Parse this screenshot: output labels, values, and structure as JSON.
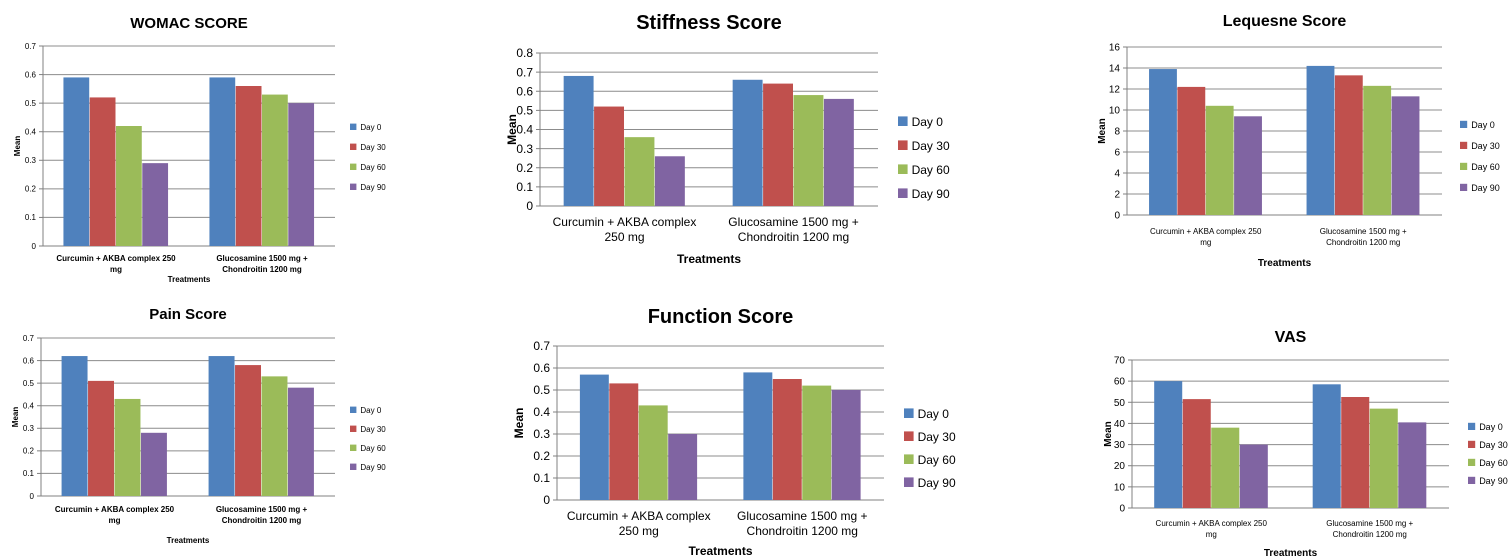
{
  "legend_colors": [
    "#4F81BD",
    "#C0504D",
    "#9BBB59",
    "#8064A2"
  ],
  "chart_data": [
    {
      "type": "bar",
      "title": "WOMAC SCORE",
      "xlabel": "Treatments",
      "ylabel": "Mean",
      "ylim": [
        0,
        0.7
      ],
      "yticks": [
        "0",
        "0.1",
        "0.2",
        "0.3",
        "0.4",
        "0.5",
        "0.6",
        "0.7"
      ],
      "categories": [
        [
          "Curcumin + AKBA complex 250",
          "mg"
        ],
        [
          "Glucosamine 1500 mg +",
          "Chondroitin 1200 mg"
        ]
      ],
      "series": [
        {
          "name": "Day 0",
          "values": [
            0.59,
            0.59
          ]
        },
        {
          "name": "Day 30",
          "values": [
            0.52,
            0.56
          ]
        },
        {
          "name": "Day 60",
          "values": [
            0.42,
            0.53
          ]
        },
        {
          "name": "Day 90",
          "values": [
            0.29,
            0.5
          ]
        }
      ],
      "legend": "right",
      "grid": true
    },
    {
      "type": "bar",
      "title": "Stiffness Score",
      "xlabel": "Treatments",
      "ylabel": "Mean",
      "ylim": [
        0,
        0.8
      ],
      "yticks": [
        "0",
        "0.1",
        "0.2",
        "0.3",
        "0.4",
        "0.5",
        "0.6",
        "0.7",
        "0.8"
      ],
      "categories": [
        [
          "Curcumin + AKBA complex",
          "250 mg"
        ],
        [
          "Glucosamine 1500 mg +",
          "Chondroitin 1200 mg"
        ]
      ],
      "series": [
        {
          "name": "Day 0",
          "values": [
            0.68,
            0.66
          ]
        },
        {
          "name": "Day 30",
          "values": [
            0.52,
            0.64
          ]
        },
        {
          "name": "Day 60",
          "values": [
            0.36,
            0.58
          ]
        },
        {
          "name": "Day 90",
          "values": [
            0.26,
            0.56
          ]
        }
      ],
      "legend": "right",
      "grid": true
    },
    {
      "type": "bar",
      "title": "Lequesne Score",
      "xlabel": "Treatments",
      "ylabel": "Mean",
      "ylim": [
        0,
        16
      ],
      "yticks": [
        "0",
        "2",
        "4",
        "6",
        "8",
        "10",
        "12",
        "14",
        "16"
      ],
      "categories": [
        [
          "Curcumin + AKBA complex 250",
          "mg"
        ],
        [
          "Glucosamine 1500 mg +",
          "Chondroitin 1200 mg"
        ]
      ],
      "series": [
        {
          "name": "Day 0",
          "values": [
            13.9,
            14.2
          ]
        },
        {
          "name": "Day 30",
          "values": [
            12.2,
            13.3
          ]
        },
        {
          "name": "Day 60",
          "values": [
            10.4,
            12.3
          ]
        },
        {
          "name": "Day 90",
          "values": [
            9.4,
            11.3
          ]
        }
      ],
      "legend": "right",
      "grid": true
    },
    {
      "type": "bar",
      "title": "Pain Score",
      "xlabel": "Treatments",
      "ylabel": "Mean",
      "ylim": [
        0,
        0.7
      ],
      "yticks": [
        "0",
        "0.1",
        "0.2",
        "0.3",
        "0.4",
        "0.5",
        "0.6",
        "0.7"
      ],
      "categories": [
        [
          "Curcumin + AKBA complex 250",
          "mg"
        ],
        [
          "Glucosamine 1500 mg +",
          "Chondroitin 1200 mg"
        ]
      ],
      "series": [
        {
          "name": "Day 0",
          "values": [
            0.62,
            0.62
          ]
        },
        {
          "name": "Day 30",
          "values": [
            0.51,
            0.58
          ]
        },
        {
          "name": "Day 60",
          "values": [
            0.43,
            0.53
          ]
        },
        {
          "name": "Day 90",
          "values": [
            0.28,
            0.48
          ]
        }
      ],
      "legend": "right",
      "grid": true
    },
    {
      "type": "bar",
      "title": "Function Score",
      "xlabel": "Treatments",
      "ylabel": "Mean",
      "ylim": [
        0,
        0.7
      ],
      "yticks": [
        "0",
        "0.1",
        "0.2",
        "0.3",
        "0.4",
        "0.5",
        "0.6",
        "0.7"
      ],
      "categories": [
        [
          "Curcumin + AKBA complex",
          "250 mg"
        ],
        [
          "Glucosamine 1500 mg +",
          "Chondroitin 1200 mg"
        ]
      ],
      "series": [
        {
          "name": "Day 0",
          "values": [
            0.57,
            0.58
          ]
        },
        {
          "name": "Day 30",
          "values": [
            0.53,
            0.55
          ]
        },
        {
          "name": "Day 60",
          "values": [
            0.43,
            0.52
          ]
        },
        {
          "name": "Day 90",
          "values": [
            0.3,
            0.5
          ]
        }
      ],
      "legend": "right",
      "grid": true
    },
    {
      "type": "bar",
      "title": "VAS",
      "xlabel": "Treatments",
      "ylabel": "Mean",
      "ylim": [
        0,
        70
      ],
      "yticks": [
        "0",
        "10",
        "20",
        "30",
        "40",
        "50",
        "60",
        "70"
      ],
      "categories": [
        [
          "Curcumin + AKBA complex 250",
          "mg"
        ],
        [
          "Glucosamine 1500 mg +",
          "Chondroitin 1200 mg"
        ]
      ],
      "series": [
        {
          "name": "Day 0",
          "values": [
            60,
            58.5
          ]
        },
        {
          "name": "Day 30",
          "values": [
            51.5,
            52.5
          ]
        },
        {
          "name": "Day 60",
          "values": [
            38,
            47
          ]
        },
        {
          "name": "Day 90",
          "values": [
            30,
            40.5
          ]
        }
      ],
      "legend": "right",
      "grid": true
    }
  ]
}
